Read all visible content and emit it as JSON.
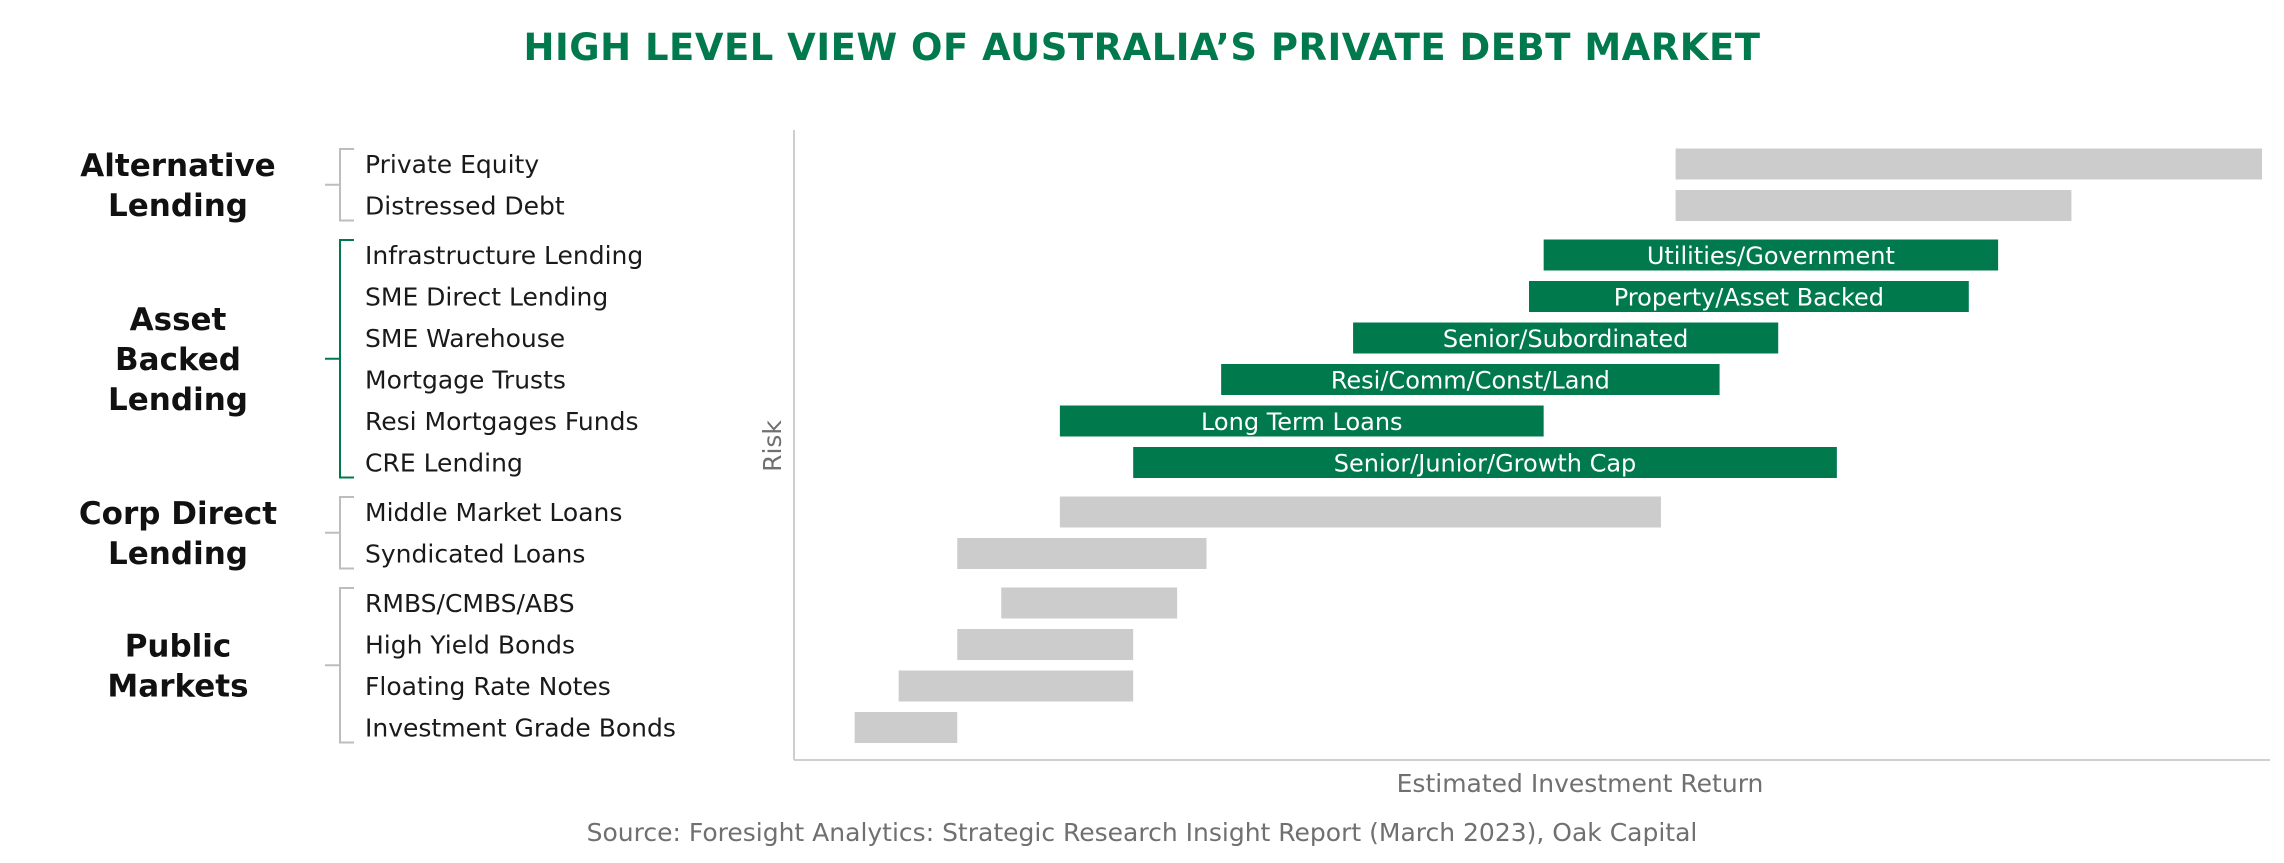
{
  "chart_data": {
    "type": "bar",
    "title": "HIGH LEVEL VIEW OF AUSTRALIA’S PRIVATE DEBT MARKET",
    "source": "Source: Foresight Analytics: Strategic Research Insight Report (March 2023), Oak Capital",
    "xlabel": "Estimated Investment Return",
    "ylabel": "Risk",
    "orientation": "horizontal-floating-range",
    "xlim": [
      0,
      100
    ],
    "groups": [
      {
        "name": "Alternative Lending",
        "lines": [
          "Alternative",
          "Lending"
        ],
        "color": "#cccccc",
        "items": [
          {
            "category": "Private Equity",
            "range": [
              60,
              100
            ],
            "label": ""
          },
          {
            "category": "Distressed Debt",
            "range": [
              60,
              87
            ],
            "label": ""
          }
        ]
      },
      {
        "name": "Asset Backed Lending",
        "lines": [
          "Asset",
          "Backed",
          "Lending"
        ],
        "color": "#007a4d",
        "items": [
          {
            "category": "Infrastructure Lending",
            "range": [
              51,
              82
            ],
            "label": "Utilities/Government"
          },
          {
            "category": "SME Direct Lending",
            "range": [
              50,
              80
            ],
            "label": "Property/Asset Backed"
          },
          {
            "category": "SME Warehouse",
            "range": [
              38,
              67
            ],
            "label": "Senior/Subordinated"
          },
          {
            "category": "Mortgage Trusts",
            "range": [
              29,
              63
            ],
            "label": "Resi/Comm/Const/Land"
          },
          {
            "category": "Resi Mortgages Funds",
            "range": [
              18,
              51
            ],
            "label": "Long Term Loans"
          },
          {
            "category": "CRE Lending",
            "range": [
              23,
              71
            ],
            "label": "Senior/Junior/Growth Cap"
          }
        ]
      },
      {
        "name": "Corp Direct Lending",
        "lines": [
          "Corp Direct",
          "Lending"
        ],
        "color": "#cccccc",
        "items": [
          {
            "category": "Middle Market Loans",
            "range": [
              18,
              59
            ],
            "label": ""
          },
          {
            "category": "Syndicated Loans",
            "range": [
              11,
              28
            ],
            "label": ""
          }
        ]
      },
      {
        "name": "Public Markets",
        "lines": [
          "Public",
          "Markets"
        ],
        "color": "#cccccc",
        "items": [
          {
            "category": "RMBS/CMBS/ABS",
            "range": [
              14,
              26
            ],
            "label": ""
          },
          {
            "category": "High Yield Bonds",
            "range": [
              11,
              23
            ],
            "label": ""
          },
          {
            "category": "Floating Rate Notes",
            "range": [
              7,
              23
            ],
            "label": ""
          },
          {
            "category": "Investment Grade Bonds",
            "range": [
              4,
              11
            ],
            "label": ""
          }
        ]
      }
    ],
    "grid": false,
    "legend": "none"
  }
}
